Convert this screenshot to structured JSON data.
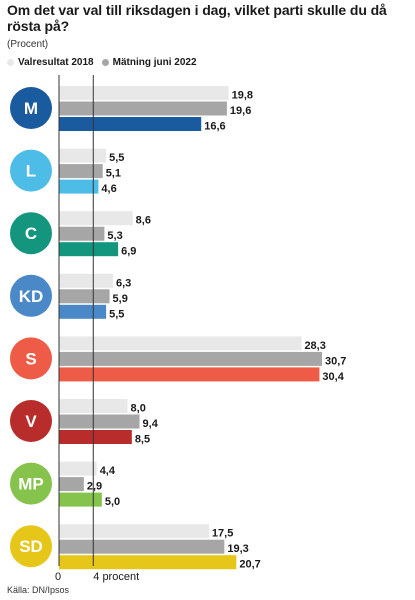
{
  "title": "Om det var val till riksdagen i dag, vilket parti skulle du då rösta på?",
  "unit_label": "(Procent)",
  "source": "Källa: DN/Ipsos",
  "chart_data": {
    "type": "bar",
    "orientation": "horizontal",
    "title": "Om det var val till riksdagen i dag, vilket parti skulle du då rösta på?",
    "categories": [
      "M",
      "L",
      "C",
      "KD",
      "S",
      "V",
      "MP",
      "SD"
    ],
    "category_colors": [
      "#1a5a9e",
      "#4dbde8",
      "#14967e",
      "#4b88c8",
      "#ee5b47",
      "#b82d2b",
      "#86c34c",
      "#e7c61a"
    ],
    "series": [
      {
        "name": "Valresultat 2018",
        "color": "#e8e8e8",
        "values": [
          19.8,
          5.5,
          8.6,
          6.3,
          28.3,
          8.0,
          4.4,
          17.5
        ]
      },
      {
        "name": "Mätning juni 2022",
        "color": "#a6a6a6",
        "values": [
          19.6,
          5.1,
          5.3,
          5.9,
          30.7,
          9.4,
          2.9,
          19.3
        ]
      },
      {
        "values": [
          16.6,
          4.6,
          6.9,
          5.5,
          30.4,
          8.5,
          5.0,
          20.7
        ]
      }
    ],
    "value_labels": [
      [
        "19,8",
        "5,5",
        "8,6",
        "6,3",
        "28,3",
        "8,0",
        "4,4",
        "17,5"
      ],
      [
        "19,6",
        "5,1",
        "5,3",
        "5,9",
        "30,7",
        "9,4",
        "2,9",
        "19,3"
      ],
      [
        "16,6",
        "4,6",
        "6,9",
        "5,5",
        "30,4",
        "8,5",
        "5,0",
        "20,7"
      ]
    ],
    "xlim": [
      0,
      30.7
    ],
    "x_ticks": [
      {
        "value": 0,
        "label": "0"
      },
      {
        "value": 4,
        "label": "4 procent"
      }
    ],
    "legend_position": "top-left"
  }
}
